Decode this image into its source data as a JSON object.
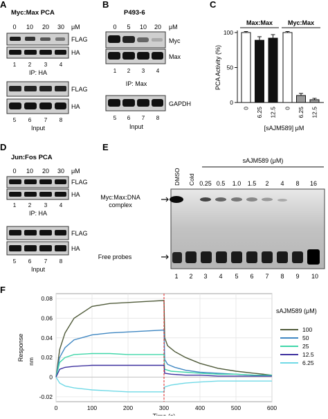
{
  "panels": {
    "A": {
      "letter": "A",
      "title": "Myc:Max PCA",
      "conc_values": [
        "0",
        "10",
        "20",
        "30"
      ],
      "conc_unit": "μM",
      "top_blot_labels": [
        "FLAG",
        "HA"
      ],
      "top_lanes": [
        "1",
        "2",
        "3",
        "4"
      ],
      "ip_label": "IP: HA",
      "bottom_blot_labels": [
        "FLAG",
        "HA"
      ],
      "bottom_lanes": [
        "5",
        "6",
        "7",
        "8"
      ],
      "input_label": "Input"
    },
    "B": {
      "letter": "B",
      "title": "P493-6",
      "conc_values": [
        "0",
        "5",
        "10",
        "20"
      ],
      "conc_unit": "μM",
      "top_blot_labels": [
        "Myc",
        "Max"
      ],
      "top_lanes": [
        "1",
        "2",
        "3",
        "4"
      ],
      "ip_label": "IP: Max",
      "bottom_blot_labels": [
        "GAPDH"
      ],
      "bottom_lanes": [
        "5",
        "6",
        "7",
        "8"
      ],
      "input_label": "Input"
    },
    "C": {
      "letter": "C"
    },
    "D": {
      "letter": "D",
      "title": "Jun:Fos PCA",
      "conc_values": [
        "0",
        "10",
        "20",
        "30"
      ],
      "conc_unit": "μM",
      "top_blot_labels": [
        "FLAG",
        "HA"
      ],
      "top_lanes": [
        "1",
        "2",
        "3",
        "4"
      ],
      "ip_label": "IP: HA",
      "bottom_blot_labels": [
        "FLAG",
        "HA"
      ],
      "bottom_lanes": [
        "5",
        "6",
        "7",
        "8"
      ],
      "input_label": "Input"
    },
    "E": {
      "letter": "E",
      "compound_label": "sAJM589 (μM)",
      "lane_headers": [
        "DMSO",
        "Cold"
      ],
      "concentrations": [
        "0.25",
        "0.5",
        "1.0",
        "1.5",
        "2",
        "4",
        "8",
        "16"
      ],
      "lanes": [
        "1",
        "2",
        "3",
        "4",
        "5",
        "6",
        "7",
        "8",
        "9",
        "10"
      ],
      "complex_label_line1": "Myc:Max:DNA",
      "complex_label_line2": "complex",
      "free_label": "Free probes"
    },
    "F": {
      "letter": "F"
    }
  },
  "chart_data": [
    {
      "type": "bar",
      "panel": "C",
      "ylabel": "PCA Activity  (%)",
      "xlabel": "[sAJM589] μM",
      "ylim": [
        0,
        100
      ],
      "yticks": [
        "0",
        "50",
        "100"
      ],
      "groups": [
        {
          "title": "Max:Max",
          "categories": [
            "0",
            "6.25",
            "12.5"
          ],
          "values": [
            100,
            89,
            92
          ],
          "errors": [
            1.5,
            5,
            5
          ],
          "fills": [
            "#ffffff",
            "#111111",
            "#111111"
          ]
        },
        {
          "title": "Myc:Max",
          "categories": [
            "0",
            "6.25",
            "12.5"
          ],
          "values": [
            100,
            10,
            4
          ],
          "errors": [
            1.5,
            3,
            2
          ],
          "fills": [
            "#ffffff",
            "#999999",
            "#999999"
          ]
        }
      ]
    },
    {
      "type": "line",
      "panel": "F",
      "xlabel": "Time (s)",
      "ylabel": "Response",
      "yunit": "nm",
      "xlim": [
        0,
        600
      ],
      "ylim": [
        -0.025,
        0.085
      ],
      "xticks": [
        "0",
        "100",
        "200",
        "300",
        "400",
        "500",
        "600"
      ],
      "yticks": [
        "-0.02",
        "0",
        "0.02",
        "0.04",
        "0.06",
        "0.08"
      ],
      "grid": true,
      "legend_title": "sAJM589 (μM)",
      "legend_position": "right",
      "injection_time": 300,
      "series": [
        {
          "name": "100",
          "color": "#4f5a39",
          "x": [
            0,
            10,
            25,
            50,
            100,
            150,
            200,
            250,
            300,
            302,
            310,
            330,
            360,
            400,
            450,
            500,
            550,
            600
          ],
          "y": [
            0,
            0.028,
            0.045,
            0.06,
            0.072,
            0.075,
            0.076,
            0.077,
            0.078,
            0.04,
            0.032,
            0.026,
            0.02,
            0.014,
            0.009,
            0.006,
            0.004,
            0.002
          ]
        },
        {
          "name": "50",
          "color": "#3f87c2",
          "x": [
            0,
            10,
            25,
            50,
            100,
            150,
            200,
            250,
            300,
            302,
            310,
            330,
            360,
            400,
            450,
            500,
            550,
            600
          ],
          "y": [
            0,
            0.02,
            0.03,
            0.038,
            0.043,
            0.045,
            0.046,
            0.047,
            0.048,
            0.018,
            0.013,
            0.01,
            0.007,
            0.005,
            0.004,
            0.003,
            0.002,
            0.002
          ]
        },
        {
          "name": "25",
          "color": "#3fd6a8",
          "x": [
            0,
            10,
            25,
            50,
            100,
            150,
            200,
            250,
            300,
            302,
            320,
            360,
            400,
            450,
            500,
            550,
            600
          ],
          "y": [
            0,
            0.015,
            0.02,
            0.023,
            0.024,
            0.024,
            0.023,
            0.023,
            0.023,
            0.008,
            0.006,
            0.005,
            0.004,
            0.003,
            0.003,
            0.002,
            0.002
          ]
        },
        {
          "name": "12.5",
          "color": "#3c2f9e",
          "x": [
            0,
            10,
            25,
            50,
            100,
            150,
            200,
            250,
            300,
            302,
            320,
            360,
            400,
            450,
            500,
            550,
            600
          ],
          "y": [
            0,
            0.008,
            0.01,
            0.011,
            0.012,
            0.012,
            0.012,
            0.012,
            0.012,
            0.004,
            0.003,
            0.002,
            0.002,
            0.001,
            0.001,
            0.001,
            0.001
          ]
        },
        {
          "name": "6.25",
          "color": "#6fd9e6",
          "x": [
            0,
            10,
            25,
            50,
            100,
            150,
            200,
            250,
            300,
            302,
            320,
            360,
            400,
            450,
            500,
            550,
            600
          ],
          "y": [
            0,
            -0.006,
            -0.009,
            -0.011,
            -0.013,
            -0.014,
            -0.015,
            -0.015,
            -0.015,
            -0.01,
            -0.008,
            -0.006,
            -0.005,
            -0.004,
            -0.004,
            -0.004,
            -0.004
          ]
        }
      ]
    }
  ]
}
